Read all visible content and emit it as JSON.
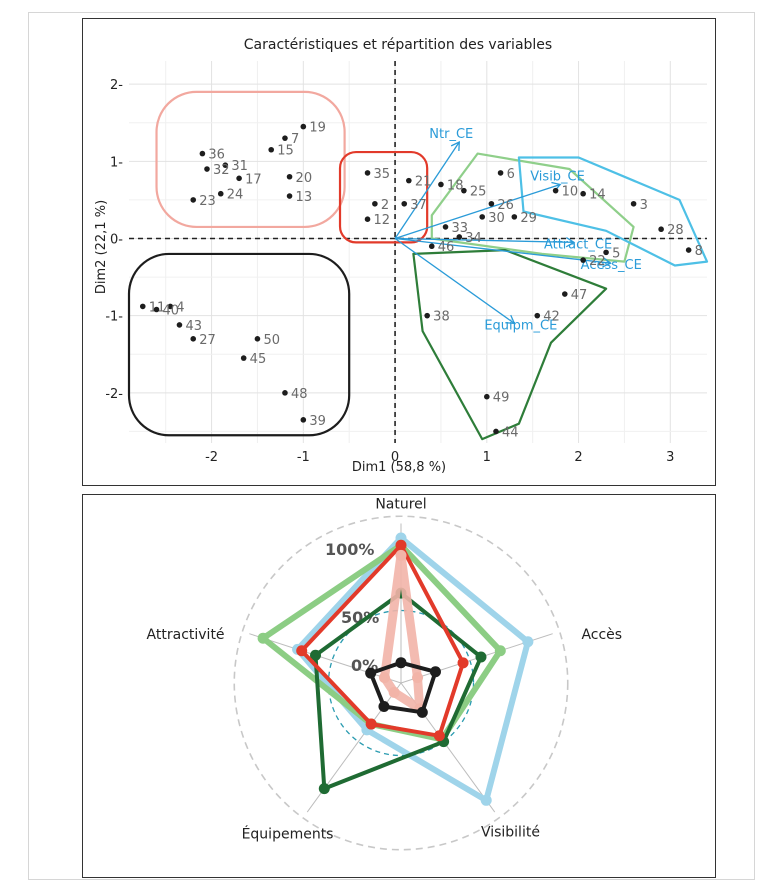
{
  "pca": {
    "title": "Caractéristiques et répartition des variables",
    "xlabel": "Dim1 (58,8 %)",
    "ylabel": "Dim2 (22,1 %)"
  },
  "chart_data": [
    {
      "type": "scatter",
      "title": "Caractéristiques et répartition des variables",
      "xlabel": "Dim1 (58,8 %)",
      "ylabel": "Dim2 (22,1 %)",
      "xlim": [
        -2.9,
        3.4
      ],
      "ylim": [
        -2.65,
        2.3
      ],
      "xticks": [
        "-2",
        "-1",
        "0",
        "1",
        "2",
        "3"
      ],
      "yticks": [
        "-2-",
        "-1-",
        "0-",
        "1-",
        "2-"
      ],
      "grid": true,
      "points": [
        {
          "label": "6",
          "x": 1.15,
          "y": 0.85
        },
        {
          "label": "25",
          "x": 0.75,
          "y": 0.62
        },
        {
          "label": "26",
          "x": 1.05,
          "y": 0.45
        },
        {
          "label": "10",
          "x": 1.75,
          "y": 0.62
        },
        {
          "label": "14",
          "x": 2.05,
          "y": 0.58
        },
        {
          "label": "3",
          "x": 2.6,
          "y": 0.45
        },
        {
          "label": "30",
          "x": 0.95,
          "y": 0.28
        },
        {
          "label": "29",
          "x": 1.3,
          "y": 0.28
        },
        {
          "label": "33",
          "x": 0.55,
          "y": 0.15
        },
        {
          "label": "34",
          "x": 0.7,
          "y": 0.02
        },
        {
          "label": "28",
          "x": 2.9,
          "y": 0.12
        },
        {
          "label": "5",
          "x": 2.3,
          "y": -0.18
        },
        {
          "label": "22",
          "x": 2.05,
          "y": -0.28
        },
        {
          "label": "8",
          "x": 3.2,
          "y": -0.15
        },
        {
          "label": "46",
          "x": 0.4,
          "y": -0.1
        },
        {
          "label": "38",
          "x": 0.35,
          "y": -1.0
        },
        {
          "label": "47",
          "x": 1.85,
          "y": -0.72
        },
        {
          "label": "42",
          "x": 1.55,
          "y": -1.0
        },
        {
          "label": "49",
          "x": 1.0,
          "y": -2.05
        },
        {
          "label": "44",
          "x": 1.1,
          "y": -2.5
        },
        {
          "label": "18",
          "x": 0.5,
          "y": 0.7
        },
        {
          "label": "21",
          "x": 0.15,
          "y": 0.75
        },
        {
          "label": "35",
          "x": -0.3,
          "y": 0.85
        },
        {
          "label": "2",
          "x": -0.22,
          "y": 0.45
        },
        {
          "label": "37",
          "x": 0.1,
          "y": 0.45
        },
        {
          "label": "12",
          "x": -0.3,
          "y": 0.25
        },
        {
          "label": "36",
          "x": -2.1,
          "y": 1.1
        },
        {
          "label": "31",
          "x": -1.85,
          "y": 0.95
        },
        {
          "label": "15",
          "x": -1.35,
          "y": 1.15
        },
        {
          "label": "7",
          "x": -1.2,
          "y": 1.3
        },
        {
          "label": "19",
          "x": -1.0,
          "y": 1.45
        },
        {
          "label": "32",
          "x": -2.05,
          "y": 0.9
        },
        {
          "label": "17",
          "x": -1.7,
          "y": 0.78
        },
        {
          "label": "20",
          "x": -1.15,
          "y": 0.8
        },
        {
          "label": "24",
          "x": -1.9,
          "y": 0.58
        },
        {
          "label": "23",
          "x": -2.2,
          "y": 0.5
        },
        {
          "label": "13",
          "x": -1.15,
          "y": 0.55
        },
        {
          "label": "11",
          "x": -2.75,
          "y": -0.88
        },
        {
          "label": "4",
          "x": -2.45,
          "y": -0.88
        },
        {
          "label": "40",
          "x": -2.6,
          "y": -0.92
        },
        {
          "label": "43",
          "x": -2.35,
          "y": -1.12
        },
        {
          "label": "27",
          "x": -2.2,
          "y": -1.3
        },
        {
          "label": "50",
          "x": -1.5,
          "y": -1.3
        },
        {
          "label": "45",
          "x": -1.65,
          "y": -1.55
        },
        {
          "label": "48",
          "x": -1.2,
          "y": -2.0
        },
        {
          "label": "39",
          "x": -1.0,
          "y": -2.35
        }
      ],
      "variables": [
        {
          "label": "Ntr_CE",
          "x": 0.7,
          "y": 1.25
        },
        {
          "label": "Visib_CE",
          "x": 1.8,
          "y": 0.7
        },
        {
          "label": "Attract_CE",
          "x": 1.95,
          "y": -0.05
        },
        {
          "label": "Acess_CE",
          "x": 2.35,
          "y": -0.32
        },
        {
          "label": "Equipm_CE",
          "x": 1.3,
          "y": -1.1
        }
      ],
      "cluster_colors": [
        "#f2a89f",
        "#e23a2a",
        "#1d1d1d",
        "#8fcf8a",
        "#2e7d39",
        "#4ec0e6"
      ]
    },
    {
      "type": "radar",
      "axes": [
        "Naturel",
        "Accès",
        "Visibilité",
        "Équipements",
        "Attractivité"
      ],
      "ring_labels": [
        "100%",
        "50%",
        "0%"
      ],
      "rmax": 100,
      "series": [
        {
          "color": "#9fd4ea",
          "values": [
            100,
            92,
            100,
            40,
            75
          ]
        },
        {
          "color": "#8ccd84",
          "values": [
            95,
            72,
            48,
            35,
            100
          ]
        },
        {
          "color": "#1f6b33",
          "values": [
            62,
            58,
            50,
            90,
            62
          ]
        },
        {
          "color": "#e23a2a",
          "values": [
            95,
            45,
            45,
            35,
            72
          ]
        },
        {
          "color": "#f2b4a8",
          "values": [
            88,
            12,
            22,
            8,
            12
          ]
        },
        {
          "color": "#1d1d1d",
          "values": [
            14,
            25,
            25,
            20,
            22
          ]
        }
      ]
    }
  ]
}
